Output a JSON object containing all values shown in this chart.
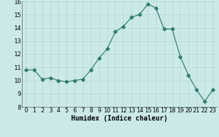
{
  "x": [
    0,
    1,
    2,
    3,
    4,
    5,
    6,
    7,
    8,
    9,
    10,
    11,
    12,
    13,
    14,
    15,
    16,
    17,
    18,
    19,
    20,
    21,
    22,
    23
  ],
  "y": [
    10.8,
    10.8,
    10.1,
    10.2,
    10.0,
    9.9,
    10.0,
    10.1,
    10.8,
    11.7,
    12.4,
    13.7,
    14.1,
    14.8,
    15.0,
    15.8,
    15.5,
    13.9,
    13.9,
    11.8,
    10.4,
    9.3,
    8.4,
    9.3
  ],
  "line_color": "#2e7d6e",
  "marker": "D",
  "marker_size": 2.5,
  "bg_color": "#cce9e9",
  "grid_color": "#afd4d4",
  "xlabel": "Humidex (Indice chaleur)",
  "ylim": [
    8,
    16
  ],
  "xlim": [
    -0.5,
    23.5
  ],
  "yticks": [
    8,
    9,
    10,
    11,
    12,
    13,
    14,
    15,
    16
  ],
  "xticks": [
    0,
    1,
    2,
    3,
    4,
    5,
    6,
    7,
    8,
    9,
    10,
    11,
    12,
    13,
    14,
    15,
    16,
    17,
    18,
    19,
    20,
    21,
    22,
    23
  ],
  "tick_label_fontsize": 6.0,
  "xlabel_fontsize": 7.0
}
